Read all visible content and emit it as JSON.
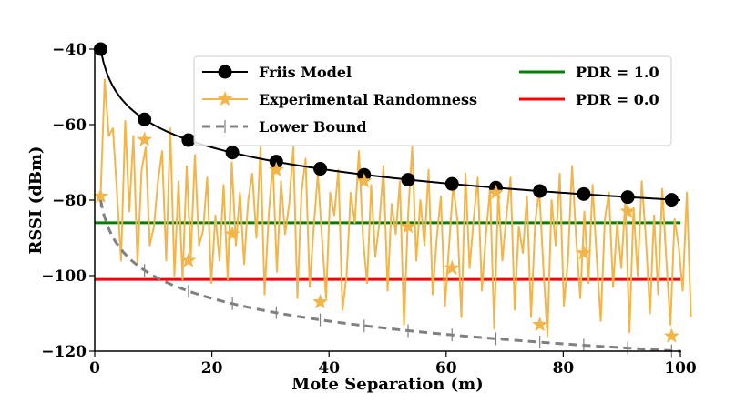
{
  "chart_data": {
    "type": "line",
    "title": "",
    "xlabel": "Mote Separation (m)",
    "ylabel": "RSSI (dBm)",
    "xlim": [
      0,
      100
    ],
    "ylim": [
      -120,
      -40
    ],
    "xticks": [
      0,
      20,
      40,
      60,
      80,
      100
    ],
    "yticks": [
      -40,
      -60,
      -80,
      -100,
      -120
    ],
    "series": [
      {
        "name": "Friis Model",
        "style": "line-with-markers",
        "color": "#000000",
        "curve": "rssi = -40 - 20*log10(d)",
        "marker_x": [
          1,
          8.5,
          16,
          23.5,
          31,
          38.5,
          46,
          53.5,
          61,
          68.5,
          76,
          83.5,
          91,
          98.5
        ],
        "marker_values": [
          -40,
          -58.6,
          -64.1,
          -67.4,
          -69.8,
          -71.7,
          -73.3,
          -74.6,
          -75.7,
          -76.7,
          -77.6,
          -78.4,
          -79.2,
          -79.9
        ]
      },
      {
        "name": "Experimental Randomness",
        "style": "line-with-stars",
        "color": "#F2B54A",
        "x_start": 1,
        "x_step": 0.7,
        "values": [
          -79,
          -48,
          -63,
          -61,
          -78,
          -96,
          -59,
          -83,
          -63,
          -97,
          -72,
          -66,
          -92,
          -87,
          -75,
          -67,
          -96,
          -61,
          -100,
          -75,
          -101,
          -71,
          -95,
          -68,
          -92,
          -88,
          -74,
          -102,
          -84,
          -96,
          -76,
          -101,
          -70,
          -92,
          -78,
          -97,
          -80,
          -73,
          -90,
          -66,
          -105,
          -84,
          -70,
          -99,
          -75,
          -89,
          -81,
          -66,
          -106,
          -78,
          -69,
          -103,
          -87,
          -73,
          -90,
          -106,
          -78,
          -84,
          -72,
          -109,
          -100,
          -78,
          -86,
          -67,
          -90,
          -102,
          -76,
          -95,
          -86,
          -71,
          -104,
          -81,
          -89,
          -75,
          -113,
          -84,
          -66,
          -96,
          -80,
          -92,
          -72,
          -105,
          -90,
          -79,
          -108,
          -92,
          -76,
          -85,
          -111,
          -73,
          -98,
          -85,
          -74,
          -104,
          -89,
          -77,
          -114,
          -78,
          -96,
          -84,
          -74,
          -109,
          -87,
          -94,
          -79,
          -111,
          -86,
          -77,
          -98,
          -116,
          -80,
          -92,
          -73,
          -108,
          -96,
          -71,
          -90,
          -106,
          -83,
          -102,
          -76,
          -95,
          -112,
          -85,
          -78,
          -103,
          -86,
          -98,
          -80,
          -115,
          -82,
          -100,
          -75,
          -90,
          -110,
          -84,
          -105,
          -77,
          -96,
          -113,
          -85,
          -92,
          -104,
          -78,
          -111
        ],
        "star_x": [
          1,
          8.5,
          16,
          23.5,
          31,
          38.5,
          46,
          53.5,
          61,
          68.5,
          76,
          83.5,
          91,
          98.5
        ],
        "star_values": [
          -79,
          -64,
          -96,
          -89,
          -72,
          -107,
          -75,
          -87,
          -98,
          -78,
          -113,
          -94,
          -83,
          -116
        ]
      },
      {
        "name": "Lower Bound",
        "style": "dashed-with-vertical-ticks",
        "color": "#808080",
        "curve": "rssi = -80 - 20*log10(d)",
        "marker_x": [
          1,
          8.5,
          16,
          23.5,
          31,
          38.5,
          46,
          53.5,
          61,
          68.5,
          76,
          83.5,
          91,
          98.5
        ],
        "marker_values": [
          -80,
          -98.6,
          -104.1,
          -107.4,
          -109.8,
          -111.7,
          -113.3,
          -114.6,
          -115.7,
          -116.7,
          -117.6,
          -118.4,
          -119.2,
          -119.9
        ]
      },
      {
        "name": "PDR = 1.0",
        "style": "horizontal-line",
        "color": "#008000",
        "value": -86
      },
      {
        "name": "PDR = 0.0",
        "style": "horizontal-line",
        "color": "#FF0000",
        "value": -101
      }
    ],
    "legend": {
      "placement": "top-right",
      "columns": 2,
      "entries": [
        "Friis Model",
        "Experimental Randomness",
        "Lower Bound",
        "PDR = 1.0",
        "PDR = 0.0"
      ]
    }
  }
}
